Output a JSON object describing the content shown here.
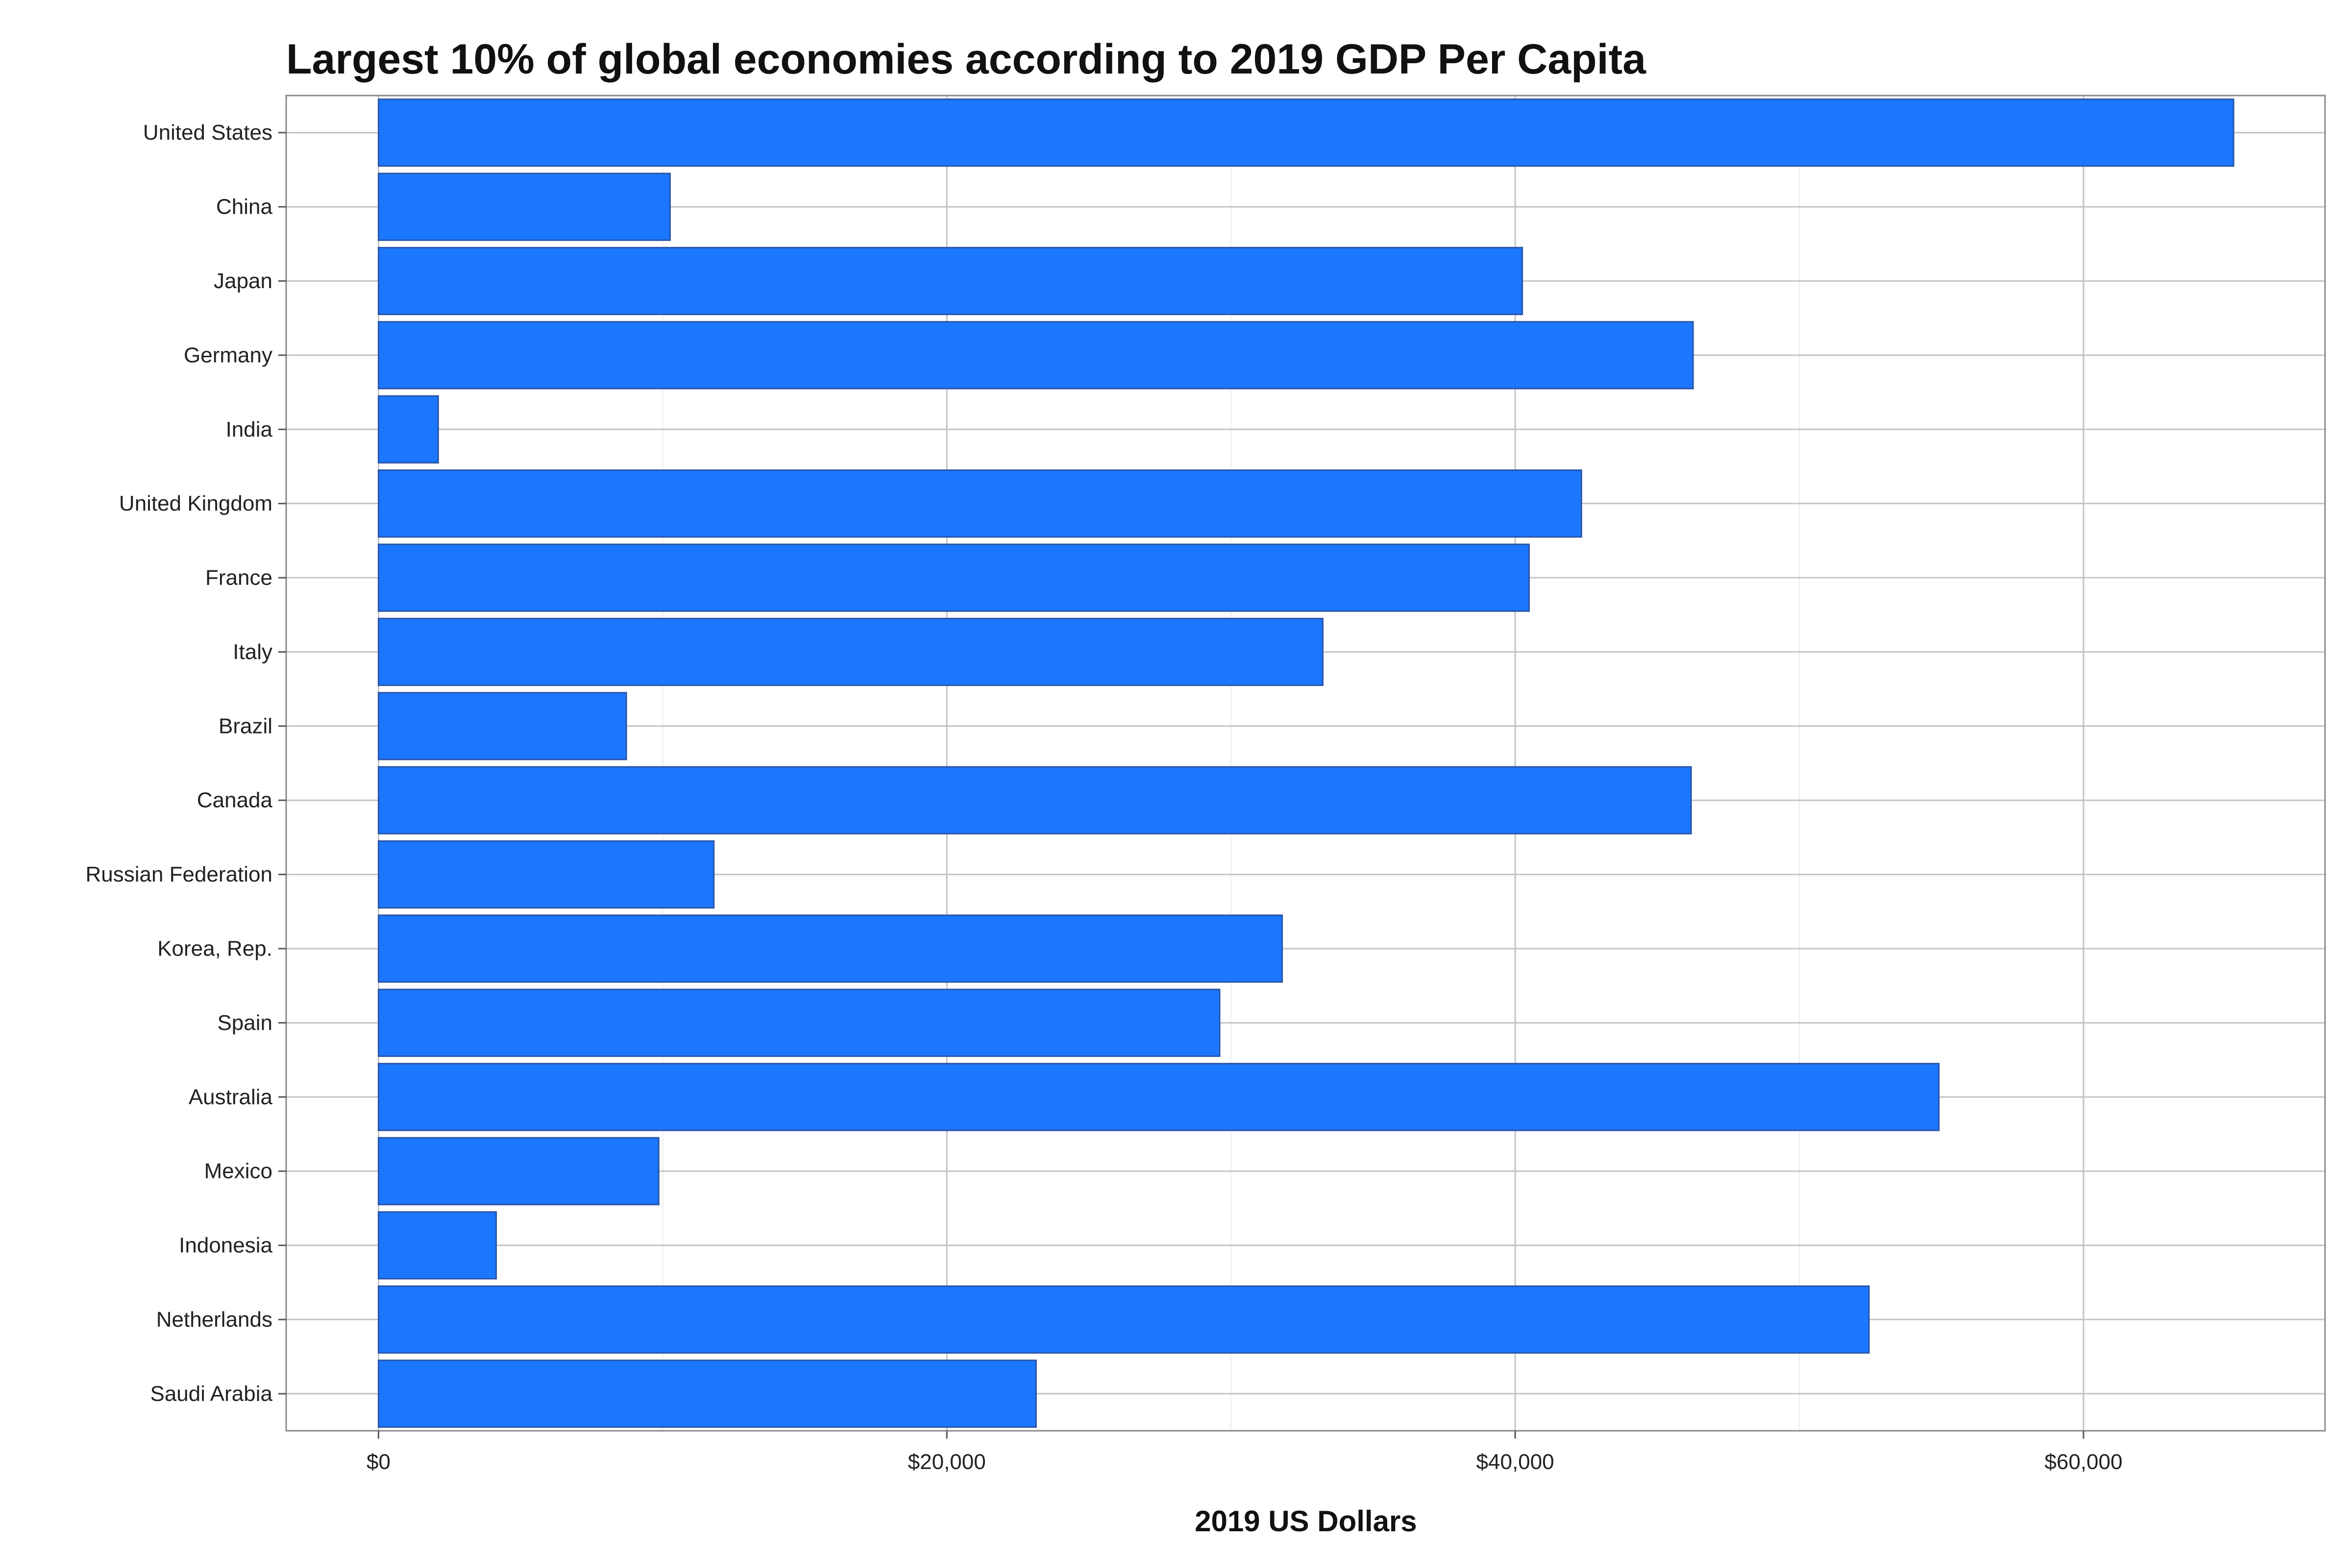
{
  "chart_data": {
    "type": "bar",
    "orientation": "horizontal",
    "title": "Largest 10% of global economies according to 2019 GDP Per Capita",
    "xlabel": "2019 US Dollars",
    "ylabel": "",
    "xlim": [
      -3250,
      68500
    ],
    "x_ticks": [
      0,
      20000,
      40000,
      60000
    ],
    "x_tick_labels": [
      "$0",
      "$20,000",
      "$40,000",
      "$60,000"
    ],
    "grid": true,
    "bar_color": "#1c77ff",
    "bar_edge_color": "#2a55a8",
    "categories": [
      "United States",
      "China",
      "Japan",
      "Germany",
      "India",
      "United Kingdom",
      "France",
      "Italy",
      "Brazil",
      "Canada",
      "Russian Federation",
      "Korea, Rep.",
      "Spain",
      "Australia",
      "Mexico",
      "Indonesia",
      "Netherlands",
      "Saudi Arabia"
    ],
    "values": [
      65280,
      10260,
      40250,
      46260,
      2100,
      42330,
      40490,
      33230,
      8720,
      46190,
      11800,
      31800,
      29600,
      54910,
      9860,
      4140,
      52450,
      23140
    ]
  }
}
